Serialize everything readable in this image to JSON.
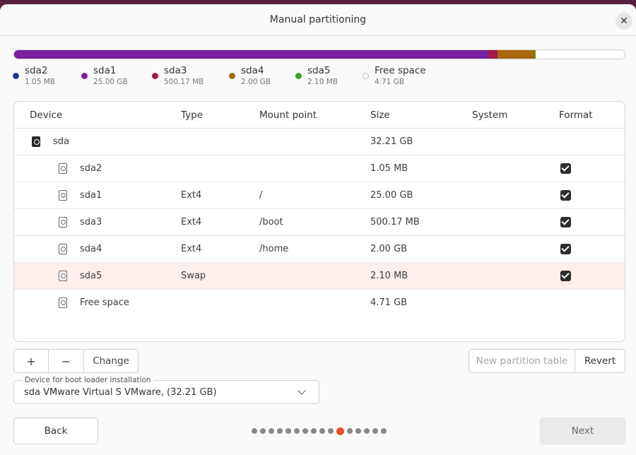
{
  "window": {
    "title": "Manual partitioning"
  },
  "usage_bar": [
    {
      "name": "sda2",
      "fraction": 0.0001,
      "color": "#1f3a93"
    },
    {
      "name": "sda1",
      "fraction": 0.776,
      "color": "#7b1fa2"
    },
    {
      "name": "sda3",
      "fraction": 0.0155,
      "color": "#a61b4a"
    },
    {
      "name": "sda4",
      "fraction": 0.062,
      "color": "#a8680e"
    },
    {
      "name": "sda5",
      "fraction": 0.0001,
      "color": "#3ea023"
    },
    {
      "name": "Free space",
      "fraction": 0.146,
      "color": "#ffffff"
    }
  ],
  "legend": [
    {
      "name": "sda2",
      "size": "1.05 MB",
      "color": "#1f3a93"
    },
    {
      "name": "sda1",
      "size": "25.00 GB",
      "color": "#7b1fa2"
    },
    {
      "name": "sda3",
      "size": "500.17 MB",
      "color": "#a61b4a"
    },
    {
      "name": "sda4",
      "size": "2.00 GB",
      "color": "#a8680e"
    },
    {
      "name": "sda5",
      "size": "2.10 MB",
      "color": "#3ea023"
    },
    {
      "name": "Free space",
      "size": "4.71 GB",
      "color": "#ffffff"
    }
  ],
  "table": {
    "headers": [
      "Device",
      "Type",
      "Mount point",
      "Size",
      "System",
      "Format"
    ],
    "rows": [
      {
        "device": "sda",
        "type": "",
        "mount": "",
        "size": "32.21 GB",
        "system": "",
        "format": false,
        "is_disk": true
      },
      {
        "device": "sda2",
        "type": "",
        "mount": "",
        "size": "1.05 MB",
        "system": "",
        "format": true,
        "is_disk": false
      },
      {
        "device": "sda1",
        "type": "Ext4",
        "mount": "/",
        "size": "25.00 GB",
        "system": "",
        "format": true,
        "is_disk": false
      },
      {
        "device": "sda3",
        "type": "Ext4",
        "mount": "/boot",
        "size": "500.17 MB",
        "system": "",
        "format": true,
        "is_disk": false
      },
      {
        "device": "sda4",
        "type": "Ext4",
        "mount": "/home",
        "size": "2.00 GB",
        "system": "",
        "format": true,
        "is_disk": false
      },
      {
        "device": "sda5",
        "type": "Swap",
        "mount": "",
        "size": "2.10 MB",
        "system": "",
        "format": true,
        "is_disk": false,
        "selected": true
      },
      {
        "device": "Free space",
        "type": "",
        "mount": "",
        "size": "4.71 GB",
        "system": "",
        "format": false,
        "is_disk": false
      }
    ]
  },
  "toolbar": {
    "add_label": "+",
    "remove_label": "−",
    "change_label": "Change",
    "new_table_label": "New partition table",
    "revert_label": "Revert"
  },
  "bootloader": {
    "label": "Device for boot loader installation",
    "value": "sda VMware Virtual S VMware, (32.21 GB)"
  },
  "nav": {
    "back_label": "Back",
    "next_label": "Next",
    "step_count": 16,
    "current_step": 10
  }
}
